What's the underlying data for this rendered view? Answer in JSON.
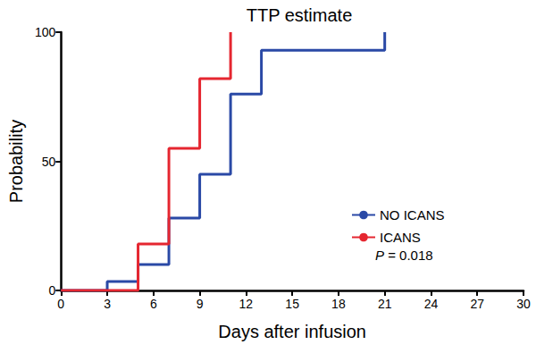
{
  "chart_data": {
    "type": "line",
    "title": "TTP estimate",
    "x_label": "Days after infusion",
    "y_label": "Probability",
    "line_style": "step",
    "xlim": [
      0,
      30
    ],
    "xticks": [
      0,
      3,
      6,
      9,
      12,
      15,
      18,
      21,
      24,
      27,
      30
    ],
    "ylim": [
      0,
      100
    ],
    "yticks": [
      0,
      50,
      100
    ],
    "grid": false,
    "legend": "right",
    "annotations": [
      "P = 0.018"
    ],
    "series": [
      {
        "name": "NO ICANS",
        "color": "#2a49a6",
        "x": [
          0,
          3,
          5,
          7,
          9,
          11,
          13,
          21
        ],
        "values": [
          0,
          3.5,
          10,
          28,
          45,
          76,
          93,
          100
        ]
      },
      {
        "name": "ICANS",
        "color": "#e52630",
        "x": [
          0,
          3,
          5,
          7,
          9,
          11
        ],
        "values": [
          0,
          0,
          18,
          55,
          82,
          100
        ]
      }
    ]
  }
}
